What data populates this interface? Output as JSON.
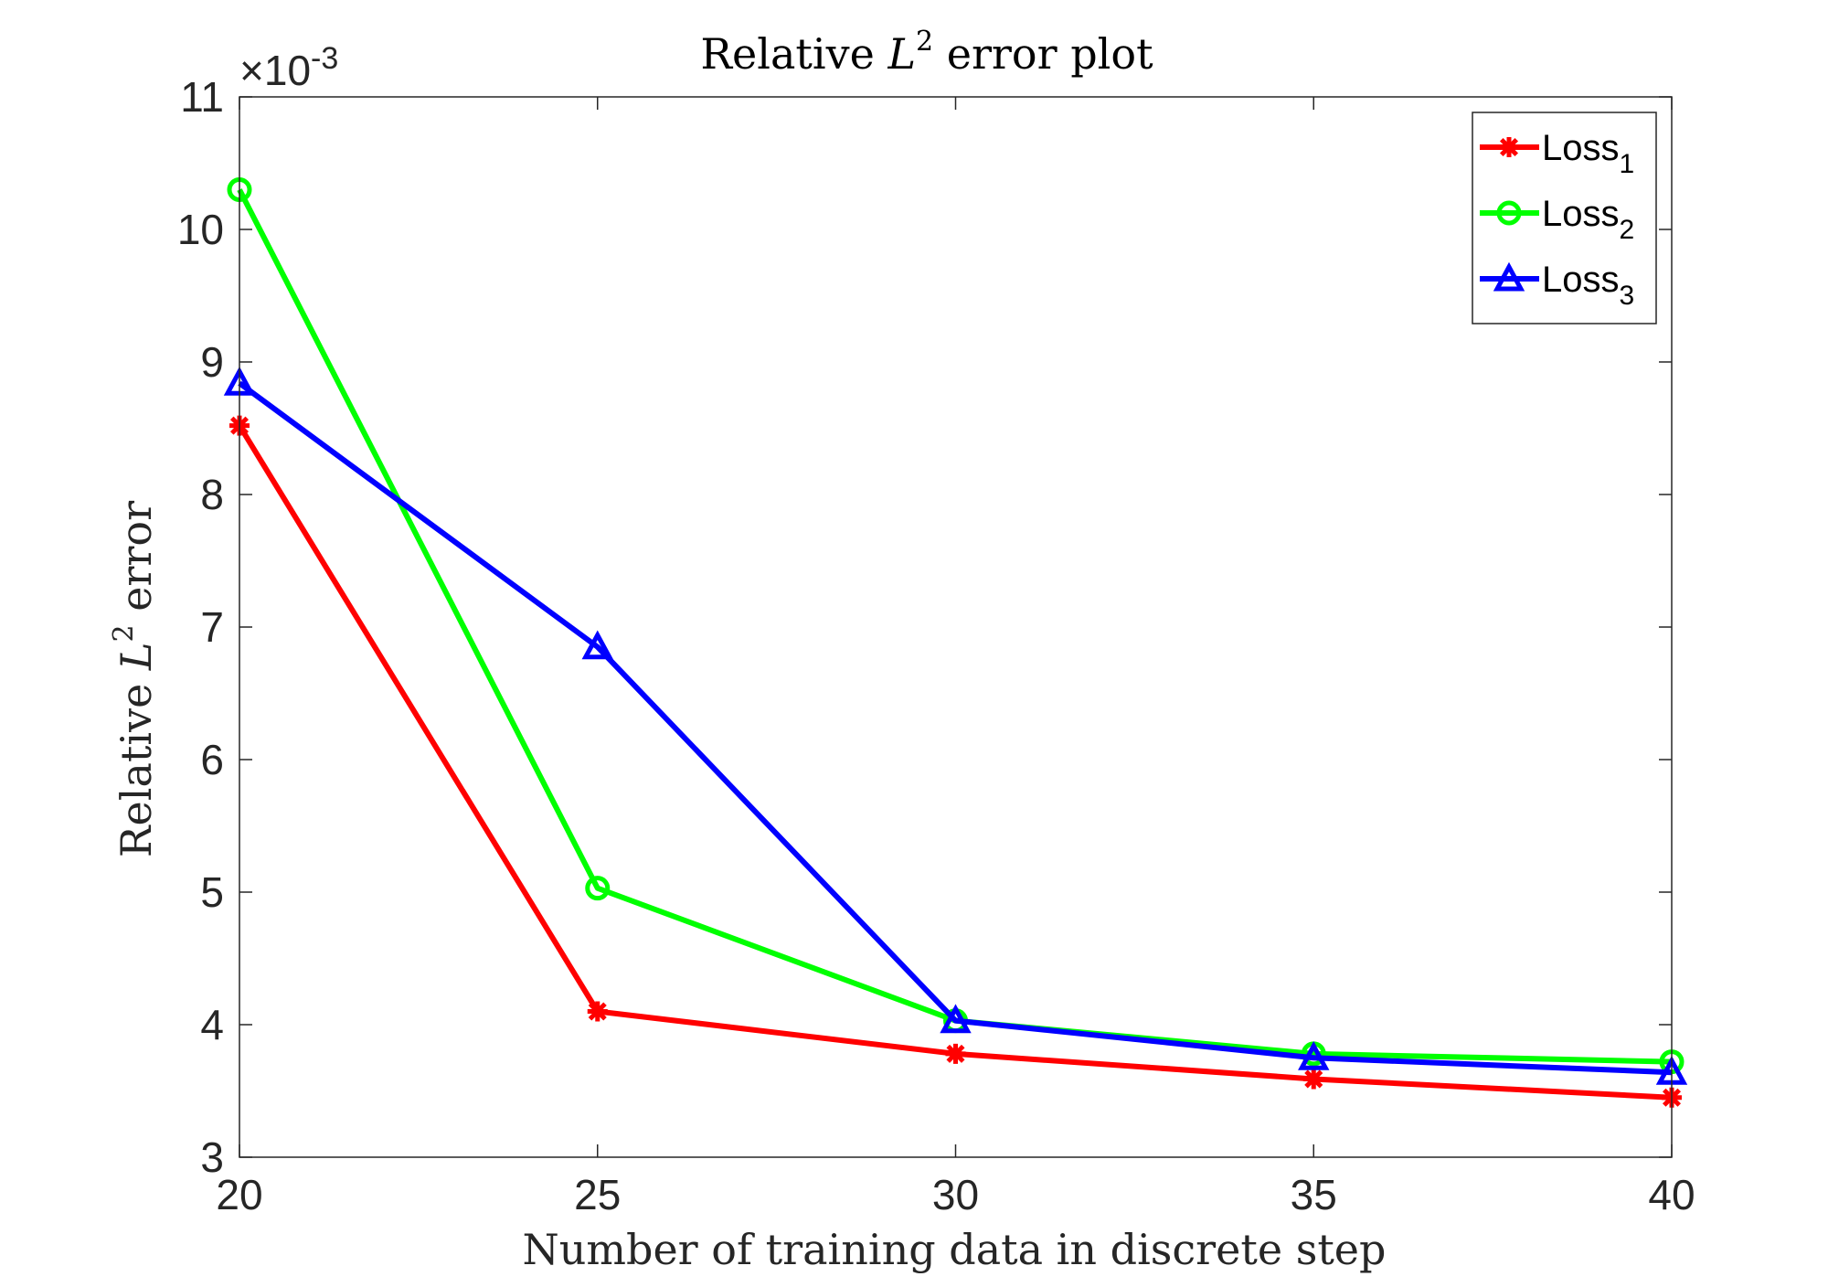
{
  "chart_data": {
    "type": "line",
    "title_prefix": "Relative ",
    "title_var": "L",
    "title_sup": "2",
    "title_suffix": " error plot",
    "xlabel": "Number of training data in discrete step",
    "ylabel_prefix": "Relative ",
    "ylabel_var": "L",
    "ylabel_sup": "2",
    "ylabel_suffix": " error",
    "y_multiplier_prefix": "×10",
    "y_multiplier_exp": "-3",
    "xlim": [
      20,
      40
    ],
    "ylim": [
      3,
      11
    ],
    "xticks": [
      20,
      25,
      30,
      35,
      40
    ],
    "yticks": [
      3,
      4,
      5,
      6,
      7,
      8,
      9,
      10,
      11
    ],
    "x": [
      20,
      25,
      30,
      35,
      40
    ],
    "legend_position": "top-right",
    "series": [
      {
        "name": "Loss",
        "sub": "1",
        "color": "#ff0000",
        "marker": "star",
        "values": [
          8.52,
          4.1,
          3.78,
          3.59,
          3.45
        ]
      },
      {
        "name": "Loss",
        "sub": "2",
        "color": "#00ff00",
        "marker": "circle",
        "values": [
          10.3,
          5.03,
          4.03,
          3.78,
          3.72
        ]
      },
      {
        "name": "Loss",
        "sub": "3",
        "color": "#0000ff",
        "marker": "triangle",
        "values": [
          8.84,
          6.85,
          4.03,
          3.75,
          3.64
        ]
      }
    ]
  }
}
